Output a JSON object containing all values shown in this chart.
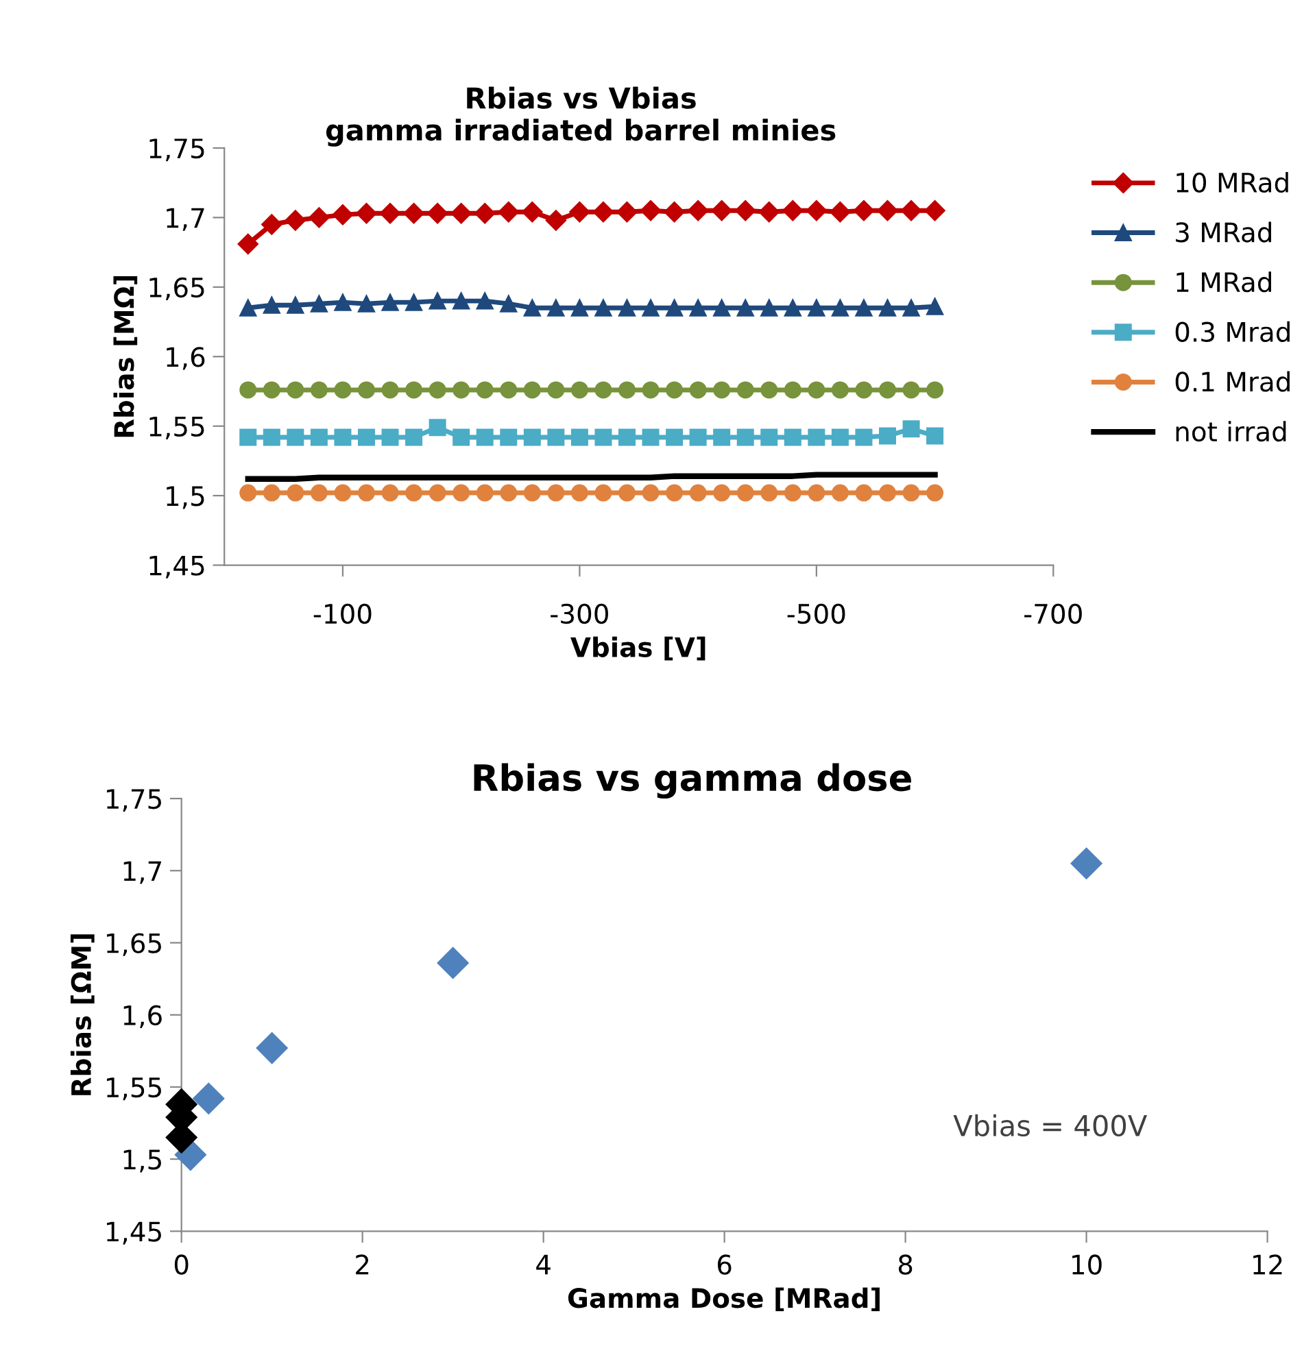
{
  "chart_data": [
    {
      "type": "line",
      "title": "Rbias vs Vbias\ngamma irradiated barrel minies",
      "xlabel": "Vbias [V]",
      "ylabel": "Rbias [MΩ]",
      "legend": "right",
      "grid": false,
      "x": [
        -20,
        -40,
        -60,
        -80,
        -100,
        -120,
        -140,
        -160,
        -180,
        -200,
        -220,
        -240,
        -260,
        -280,
        -300,
        -320,
        -340,
        -360,
        -380,
        -400,
        -420,
        -440,
        -460,
        -480,
        -500,
        -520,
        -540,
        -560,
        -580,
        -600
      ],
      "xlim": [
        0,
        -700
      ],
      "xticks": [
        {
          "value": -100,
          "label": "-100"
        },
        {
          "value": -300,
          "label": "-300"
        },
        {
          "value": -500,
          "label": "-500"
        },
        {
          "value": -700,
          "label": "-700"
        }
      ],
      "ylim": [
        1.45,
        1.75
      ],
      "yticks": [
        {
          "value": 1.45,
          "label": "1,45"
        },
        {
          "value": 1.5,
          "label": "1,5"
        },
        {
          "value": 1.55,
          "label": "1,55"
        },
        {
          "value": 1.6,
          "label": "1,6"
        },
        {
          "value": 1.65,
          "label": "1,65"
        },
        {
          "value": 1.7,
          "label": "1,7"
        },
        {
          "value": 1.75,
          "label": "1,75"
        }
      ],
      "series": [
        {
          "name": "10 MRad",
          "color": "#c00000",
          "marker": "diamond",
          "values": [
            1.681,
            1.695,
            1.698,
            1.7,
            1.702,
            1.703,
            1.703,
            1.703,
            1.703,
            1.703,
            1.703,
            1.704,
            1.704,
            1.698,
            1.704,
            1.704,
            1.704,
            1.705,
            1.704,
            1.705,
            1.705,
            1.705,
            1.704,
            1.705,
            1.705,
            1.704,
            1.705,
            1.705,
            1.705,
            1.705
          ]
        },
        {
          "name": "3 MRad",
          "color": "#1f497d",
          "marker": "triangle",
          "values": [
            1.635,
            1.637,
            1.637,
            1.638,
            1.639,
            1.638,
            1.639,
            1.639,
            1.64,
            1.64,
            1.64,
            1.638,
            1.635,
            1.635,
            1.635,
            1.635,
            1.635,
            1.635,
            1.635,
            1.635,
            1.635,
            1.635,
            1.635,
            1.635,
            1.635,
            1.635,
            1.635,
            1.635,
            1.635,
            1.636
          ]
        },
        {
          "name": "1 MRad",
          "color": "#77933c",
          "marker": "circle",
          "values": [
            1.576,
            1.576,
            1.576,
            1.576,
            1.576,
            1.576,
            1.576,
            1.576,
            1.576,
            1.576,
            1.576,
            1.576,
            1.576,
            1.576,
            1.576,
            1.576,
            1.576,
            1.576,
            1.576,
            1.576,
            1.576,
            1.576,
            1.576,
            1.576,
            1.576,
            1.576,
            1.576,
            1.576,
            1.576,
            1.576
          ]
        },
        {
          "name": "0.3 Mrad",
          "color": "#4bacc6",
          "marker": "square",
          "values": [
            1.542,
            1.542,
            1.542,
            1.542,
            1.542,
            1.542,
            1.542,
            1.542,
            1.549,
            1.542,
            1.542,
            1.542,
            1.542,
            1.542,
            1.542,
            1.542,
            1.542,
            1.542,
            1.542,
            1.542,
            1.542,
            1.542,
            1.542,
            1.542,
            1.542,
            1.542,
            1.542,
            1.543,
            1.548,
            1.543
          ]
        },
        {
          "name": "0.1 Mrad",
          "color": "#e0823e",
          "marker": "circle",
          "values": [
            1.502,
            1.502,
            1.502,
            1.502,
            1.502,
            1.502,
            1.502,
            1.502,
            1.502,
            1.502,
            1.502,
            1.502,
            1.502,
            1.502,
            1.502,
            1.502,
            1.502,
            1.502,
            1.502,
            1.502,
            1.502,
            1.502,
            1.502,
            1.502,
            1.502,
            1.502,
            1.502,
            1.502,
            1.502,
            1.502
          ]
        },
        {
          "name": "not irrad",
          "color": "#000000",
          "marker": "none",
          "values": [
            1.512,
            1.512,
            1.512,
            1.513,
            1.513,
            1.513,
            1.513,
            1.513,
            1.513,
            1.513,
            1.513,
            1.513,
            1.513,
            1.513,
            1.513,
            1.513,
            1.513,
            1.513,
            1.514,
            1.514,
            1.514,
            1.514,
            1.514,
            1.514,
            1.515,
            1.515,
            1.515,
            1.515,
            1.515,
            1.515
          ]
        }
      ]
    },
    {
      "type": "scatter",
      "title": "Rbias vs gamma dose",
      "xlabel": "Gamma Dose [MRad]",
      "ylabel": "Rbias [ΩM]",
      "legend": false,
      "grid": false,
      "marker": "diamond",
      "xlim": [
        0,
        12
      ],
      "xticks": [
        0,
        2,
        4,
        6,
        8,
        10,
        12
      ],
      "ylim": [
        1.45,
        1.75
      ],
      "yticks": [
        {
          "value": 1.45,
          "label": "1,45"
        },
        {
          "value": 1.5,
          "label": "1,5"
        },
        {
          "value": 1.55,
          "label": "1,55"
        },
        {
          "value": 1.6,
          "label": "1,6"
        },
        {
          "value": 1.65,
          "label": "1,65"
        },
        {
          "value": 1.7,
          "label": "1,7"
        },
        {
          "value": 1.75,
          "label": "1,75"
        }
      ],
      "annotations": [
        "Vbias = 400V"
      ],
      "series": [
        {
          "color": "#4f81bd",
          "x": [
            0.1,
            0.3,
            1,
            3,
            10
          ],
          "values": [
            1.503,
            1.542,
            1.577,
            1.636,
            1.705
          ]
        },
        {
          "color": "#000000",
          "x": [
            0,
            0,
            0
          ],
          "values": [
            1.538,
            1.529,
            1.515
          ]
        }
      ]
    }
  ]
}
